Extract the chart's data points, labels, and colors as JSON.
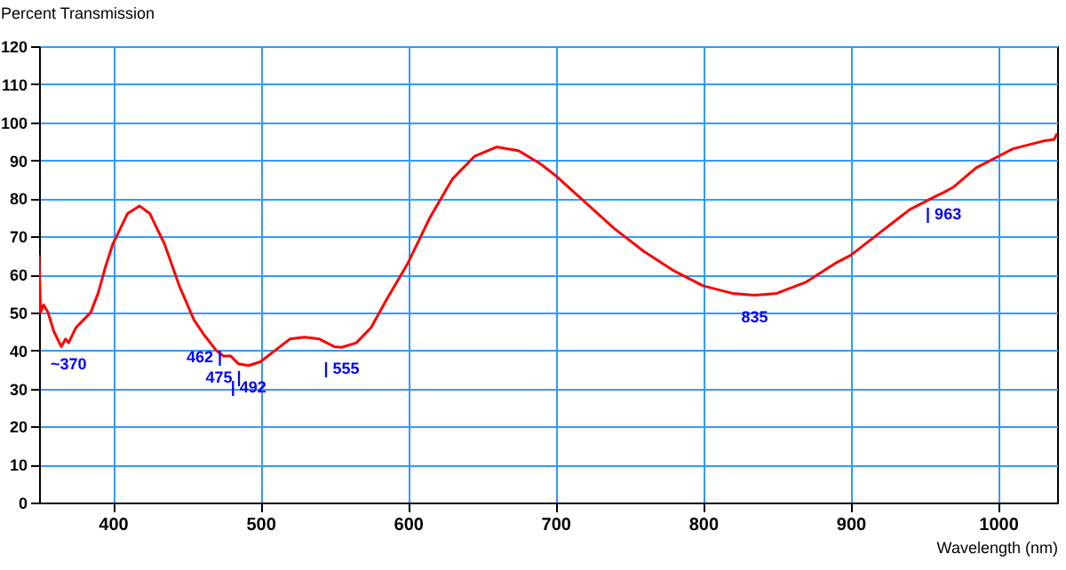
{
  "chart_data": {
    "type": "line",
    "ylabel": "Percent Transmission",
    "xlabel": "Wavelength (nm)",
    "xlim": [
      350,
      1040
    ],
    "xticks": [
      400,
      500,
      600,
      700,
      800,
      900,
      1000
    ],
    "ylim": [
      0,
      120
    ],
    "yticks": [
      0,
      10,
      20,
      30,
      40,
      50,
      60,
      70,
      80,
      90,
      100,
      110,
      120
    ],
    "grid": true,
    "series": [
      {
        "color": "#ff0000",
        "x": [
          350,
          351,
          353,
          356,
          360,
          365,
          368,
          370,
          375,
          380,
          385,
          390,
          395,
          400,
          405,
          410,
          418,
          425,
          435,
          445,
          455,
          462,
          470,
          475,
          480,
          485,
          492,
          500,
          510,
          520,
          530,
          540,
          550,
          555,
          565,
          575,
          585,
          600,
          615,
          630,
          645,
          660,
          675,
          690,
          700,
          720,
          740,
          760,
          780,
          800,
          820,
          835,
          850,
          870,
          890,
          900,
          920,
          940,
          960,
          963,
          970,
          985,
          1000,
          1010,
          1020,
          1030,
          1038,
          1040
        ],
        "values": [
          65,
          50,
          52,
          50,
          45,
          41,
          43,
          42,
          46,
          48,
          50,
          55,
          62,
          68,
          72,
          76,
          78,
          76,
          68,
          57,
          48,
          44,
          40,
          38.5,
          38.5,
          36.5,
          36,
          37,
          40,
          43,
          43.5,
          43,
          41,
          40.8,
          42,
          46,
          53,
          63,
          75,
          85,
          91,
          93.5,
          92.5,
          89,
          86,
          79,
          72,
          66,
          61,
          57,
          55,
          54.5,
          55,
          58,
          63,
          65,
          71,
          77,
          81,
          81.5,
          83,
          88,
          91,
          93,
          94,
          95,
          95.5,
          97
        ]
      }
    ],
    "annotations": [
      {
        "text": "~370",
        "x": 370,
        "y": 42
      },
      {
        "text": "462 |",
        "x": 462,
        "y": 44
      },
      {
        "text": "475 |",
        "x": 475,
        "y": 38.5
      },
      {
        "text": "| 492",
        "x": 492,
        "y": 36
      },
      {
        "text": "| 555",
        "x": 555,
        "y": 40.8
      },
      {
        "text": "835",
        "x": 835,
        "y": 54.5
      },
      {
        "text": "| 963",
        "x": 963,
        "y": 81.5
      }
    ]
  }
}
